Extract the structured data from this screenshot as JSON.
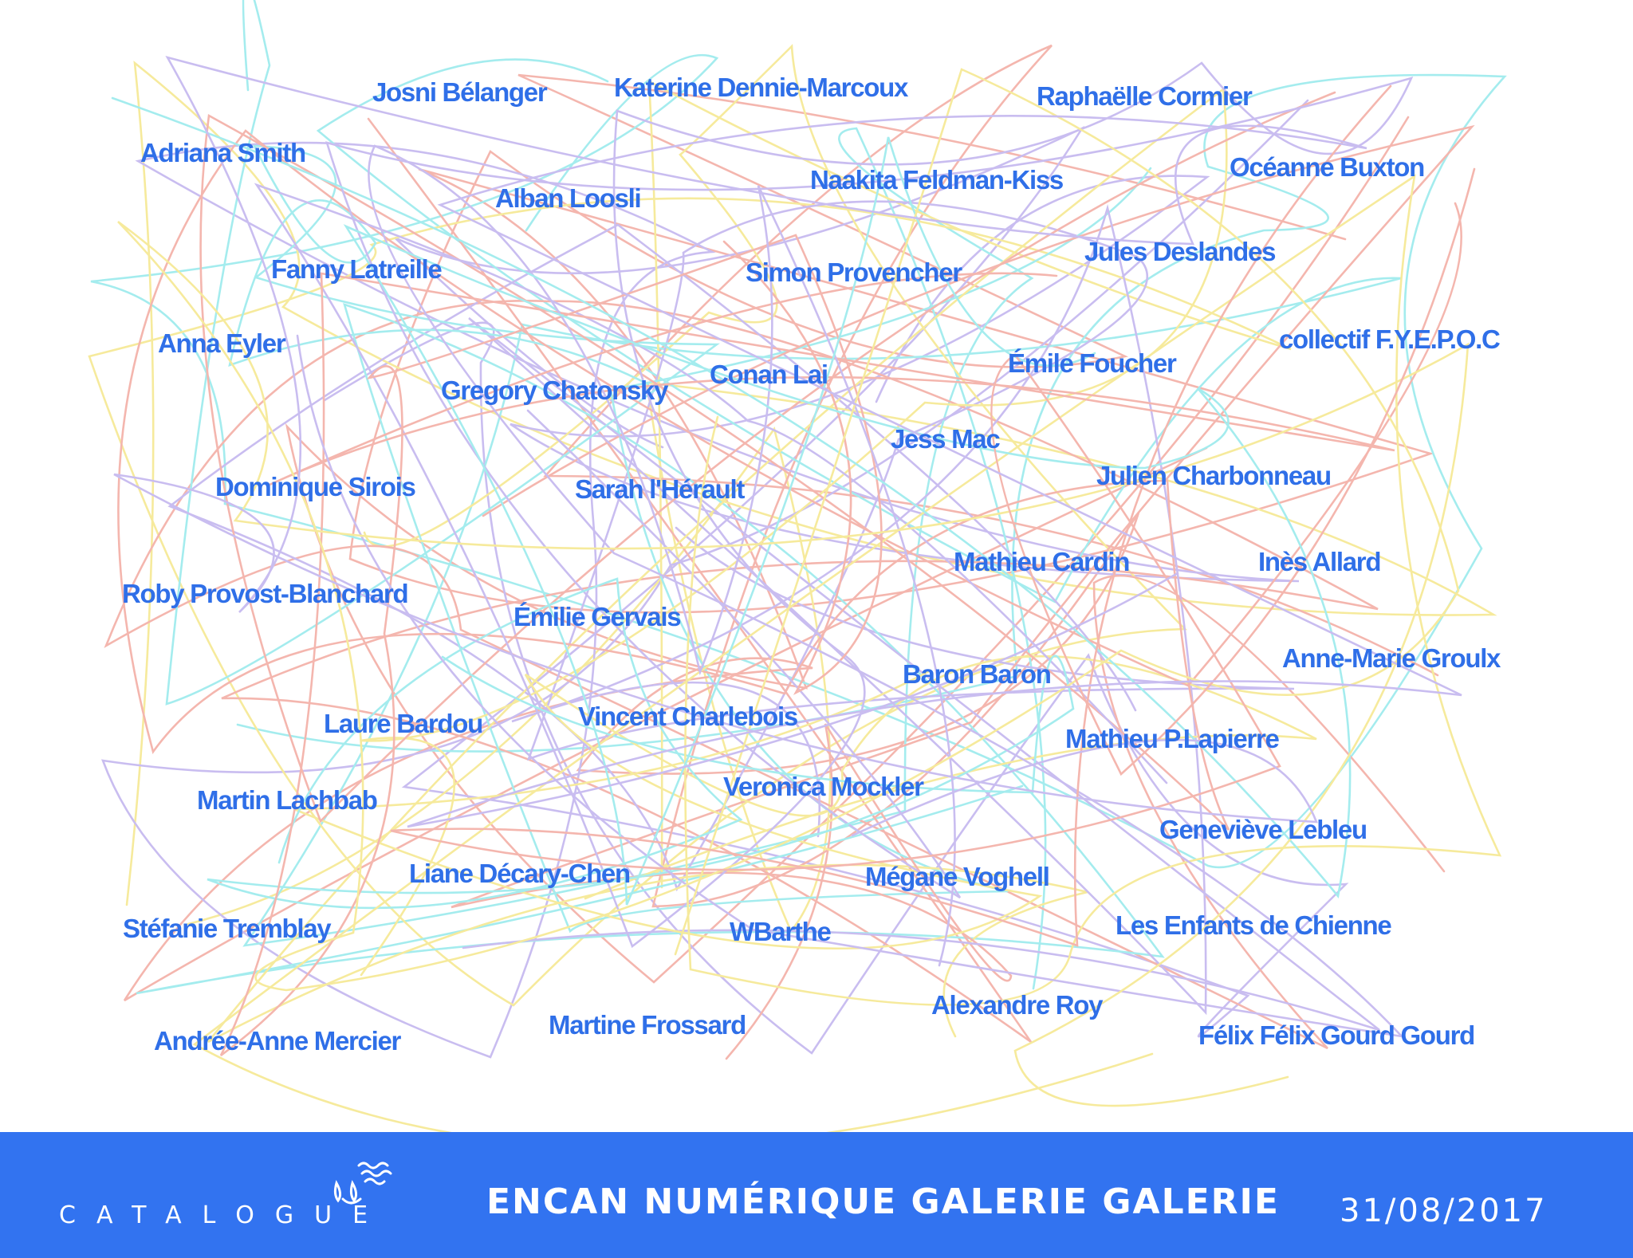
{
  "artists": [
    "Josni Bélanger",
    "Katerine Dennie-Marcoux",
    "Raphaëlle Cormier",
    "Adriana Smith",
    "Alban Loosli",
    "Naakita Feldman-Kiss",
    "Océanne Buxton",
    "Fanny Latreille",
    "Simon Provencher",
    "Jules Deslandes",
    "Anna Eyler",
    "collectif F.Y.E.P.O.C",
    "Gregory Chatonsky",
    "Conan Lai",
    "Émile Foucher",
    "Jess Mac",
    "Dominique Sirois",
    "Sarah l'Hérault",
    "Julien Charbonneau",
    "Mathieu Cardin",
    "Inès Allard",
    "Roby Provost-Blanchard",
    "Émilie Gervais",
    "Anne-Marie Groulx",
    "Baron Baron",
    "Laure Bardou",
    "Vincent Charlebois",
    "Mathieu P.Lapierre",
    "Veronica Mockler",
    "Martin Lachbab",
    "Geneviève Lebleu",
    "Liane Décary-Chen",
    "Mégane Voghell",
    "Stéfanie Tremblay",
    "WBarthe",
    "Les Enfants de Chienne",
    "Alexandre Roy",
    "Martine Frossard",
    "Andrée-Anne Mercier",
    "Félix Félix Gourd Gourd"
  ],
  "footer": {
    "brand": "CATALOGUE",
    "title": "ENCAN NUMÉRIQUE GALERIE GALERIE",
    "date": "31/08/2017"
  },
  "colors": {
    "name_text": "#2f6fe8",
    "footer_bg": "#3273f0",
    "scribble_lines": [
      "#f4b6ae",
      "#c9bdf0",
      "#a4ecee",
      "#f6ea9c"
    ]
  }
}
